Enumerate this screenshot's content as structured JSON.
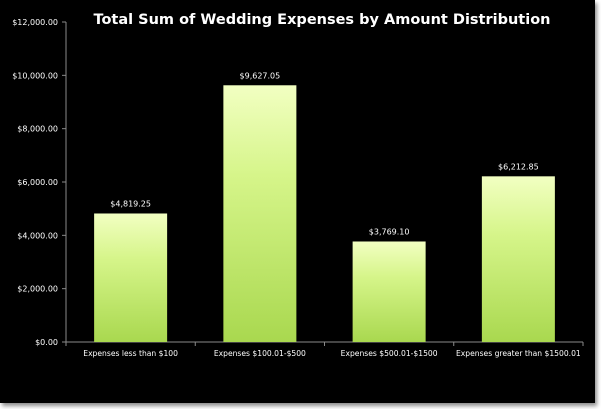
{
  "chart_data": {
    "type": "bar",
    "title": "Total Sum of Wedding Expenses by Amount Distribution",
    "xlabel": "",
    "ylabel": "",
    "categories": [
      "Expenses less than $100",
      "Expenses $100.01-$500",
      "Expenses $500.01-$1500",
      "Expenses greater than $1500.01"
    ],
    "values": [
      4819.25,
      9627.05,
      3769.1,
      6212.85
    ],
    "data_labels": [
      "$4,819.25",
      "$9,627.05",
      "$3,769.10",
      "$6,212.85"
    ],
    "ylim": [
      0,
      12000
    ],
    "yticks": [
      0,
      2000,
      4000,
      6000,
      8000,
      10000,
      12000
    ],
    "ytick_labels": [
      "$0.00",
      "$2,000.00",
      "$4,000.00",
      "$6,000.00",
      "$8,000.00",
      "$10,000.00",
      "$12,000.00"
    ],
    "grid": false,
    "legend": "none",
    "colors": {
      "background": "#000000",
      "bar_top": "#f2ffc2",
      "bar_mid": "#d6f58a",
      "bar_bottom": "#a9d84f",
      "axis": "#8a8a8a",
      "text": "#ffffff"
    }
  }
}
